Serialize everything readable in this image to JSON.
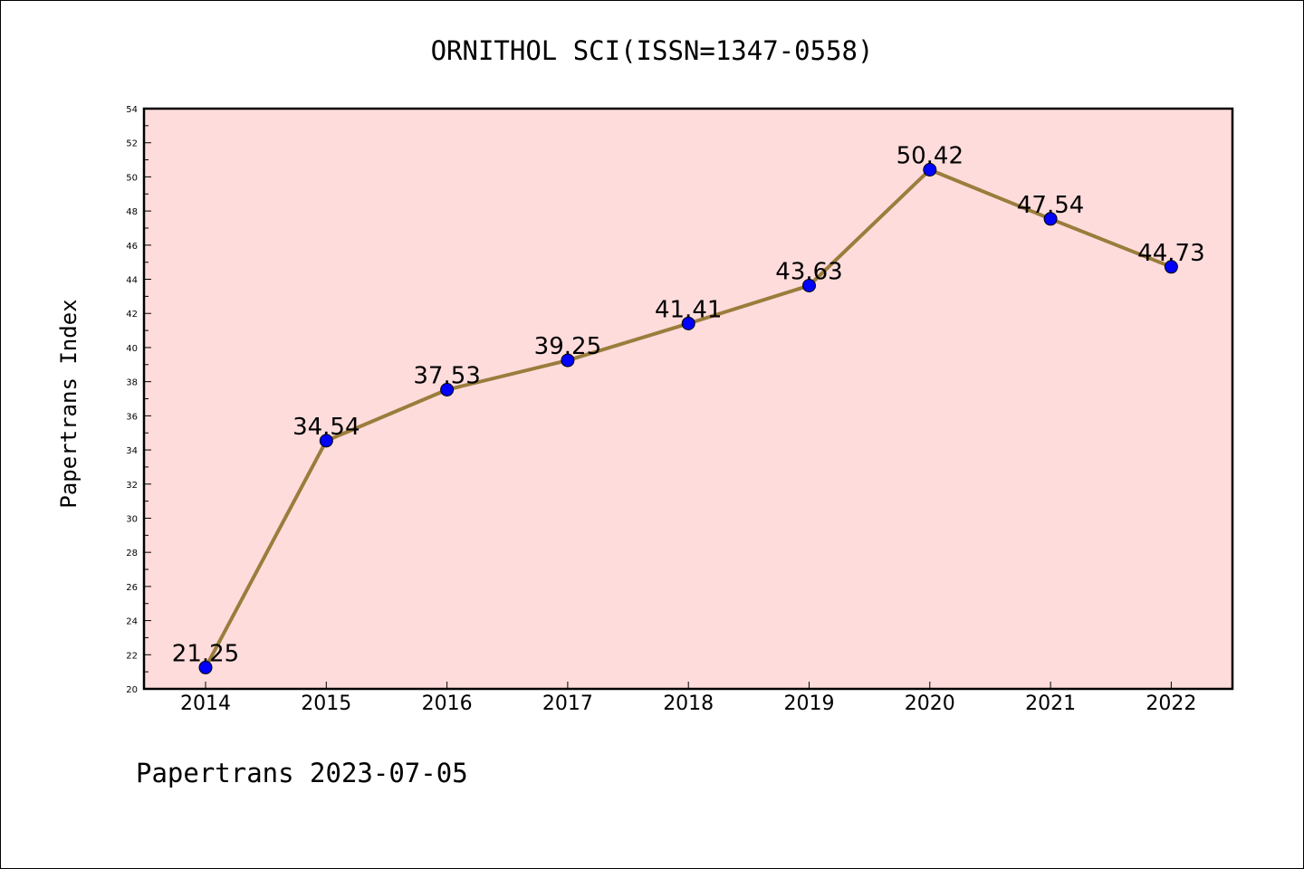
{
  "chart_data": {
    "type": "line",
    "title": "ORNITHOL SCI(ISSN=1347-0558)",
    "xlabel": "",
    "ylabel": "Papertrans Index",
    "categories": [
      "2014",
      "2015",
      "2016",
      "2017",
      "2018",
      "2019",
      "2020",
      "2021",
      "2022"
    ],
    "values": [
      21.25,
      34.54,
      37.53,
      39.25,
      41.41,
      43.63,
      50.42,
      47.54,
      44.73
    ],
    "data_labels": [
      "21.25",
      "34.54",
      "37.53",
      "39.25",
      "41.41",
      "43.63",
      "50.42",
      "47.54",
      "44.73"
    ],
    "ylim": [
      20,
      54
    ],
    "yticks": [
      "20",
      "22",
      "24",
      "26",
      "28",
      "30",
      "32",
      "34",
      "36",
      "38",
      "40",
      "42",
      "44",
      "46",
      "48",
      "50",
      "52",
      "54"
    ],
    "grid": false,
    "legend": "none",
    "colors": {
      "plot_background": "#ffdcdc",
      "line": "#9a7d3c",
      "marker": "#0000ff",
      "axes": "#000000"
    }
  },
  "footer": {
    "text": "Papertrans 2023-07-05"
  }
}
